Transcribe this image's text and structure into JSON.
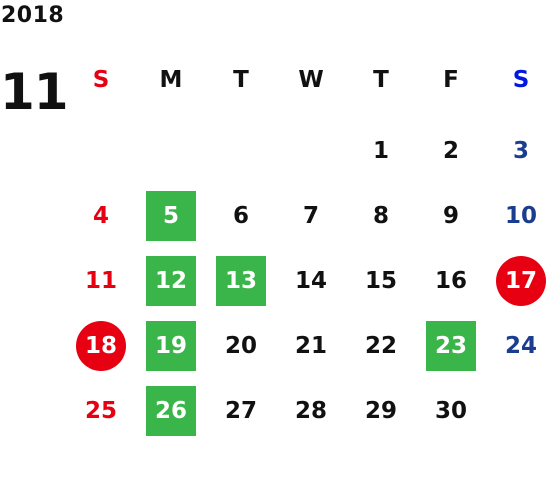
{
  "year": "2018",
  "month": "11",
  "colors": {
    "sunday": "#e60012",
    "saturday": "#1b3d8f",
    "saturday_header": "#0018e0",
    "weekday": "#111111",
    "green_highlight": "#3ab54a",
    "red_circle": "#e60012"
  },
  "weekdays": [
    "S",
    "M",
    "T",
    "W",
    "T",
    "F",
    "S"
  ],
  "weeks": [
    [
      {
        "day": "",
        "style": "none",
        "kind": "sun"
      },
      {
        "day": "",
        "style": "none",
        "kind": "wk"
      },
      {
        "day": "",
        "style": "none",
        "kind": "wk"
      },
      {
        "day": "",
        "style": "none",
        "kind": "wk"
      },
      {
        "day": "1",
        "style": "none",
        "kind": "wk"
      },
      {
        "day": "2",
        "style": "none",
        "kind": "wk"
      },
      {
        "day": "3",
        "style": "none",
        "kind": "sat"
      }
    ],
    [
      {
        "day": "4",
        "style": "none",
        "kind": "sun"
      },
      {
        "day": "5",
        "style": "green",
        "kind": "wk"
      },
      {
        "day": "6",
        "style": "none",
        "kind": "wk"
      },
      {
        "day": "7",
        "style": "none",
        "kind": "wk"
      },
      {
        "day": "8",
        "style": "none",
        "kind": "wk"
      },
      {
        "day": "9",
        "style": "none",
        "kind": "wk"
      },
      {
        "day": "10",
        "style": "none",
        "kind": "sat"
      }
    ],
    [
      {
        "day": "11",
        "style": "none",
        "kind": "sun"
      },
      {
        "day": "12",
        "style": "green",
        "kind": "wk"
      },
      {
        "day": "13",
        "style": "green",
        "kind": "wk"
      },
      {
        "day": "14",
        "style": "none",
        "kind": "wk"
      },
      {
        "day": "15",
        "style": "none",
        "kind": "wk"
      },
      {
        "day": "16",
        "style": "none",
        "kind": "wk"
      },
      {
        "day": "17",
        "style": "red-circle",
        "kind": "sat"
      }
    ],
    [
      {
        "day": "18",
        "style": "red-circle",
        "kind": "sun"
      },
      {
        "day": "19",
        "style": "green",
        "kind": "wk"
      },
      {
        "day": "20",
        "style": "none",
        "kind": "wk"
      },
      {
        "day": "21",
        "style": "none",
        "kind": "wk"
      },
      {
        "day": "22",
        "style": "none",
        "kind": "wk"
      },
      {
        "day": "23",
        "style": "green",
        "kind": "wk"
      },
      {
        "day": "24",
        "style": "none",
        "kind": "sat"
      }
    ],
    [
      {
        "day": "25",
        "style": "none",
        "kind": "sun"
      },
      {
        "day": "26",
        "style": "green",
        "kind": "wk"
      },
      {
        "day": "27",
        "style": "none",
        "kind": "wk"
      },
      {
        "day": "28",
        "style": "none",
        "kind": "wk"
      },
      {
        "day": "29",
        "style": "none",
        "kind": "wk"
      },
      {
        "day": "30",
        "style": "none",
        "kind": "wk"
      },
      {
        "day": "",
        "style": "none",
        "kind": "sat"
      }
    ]
  ]
}
